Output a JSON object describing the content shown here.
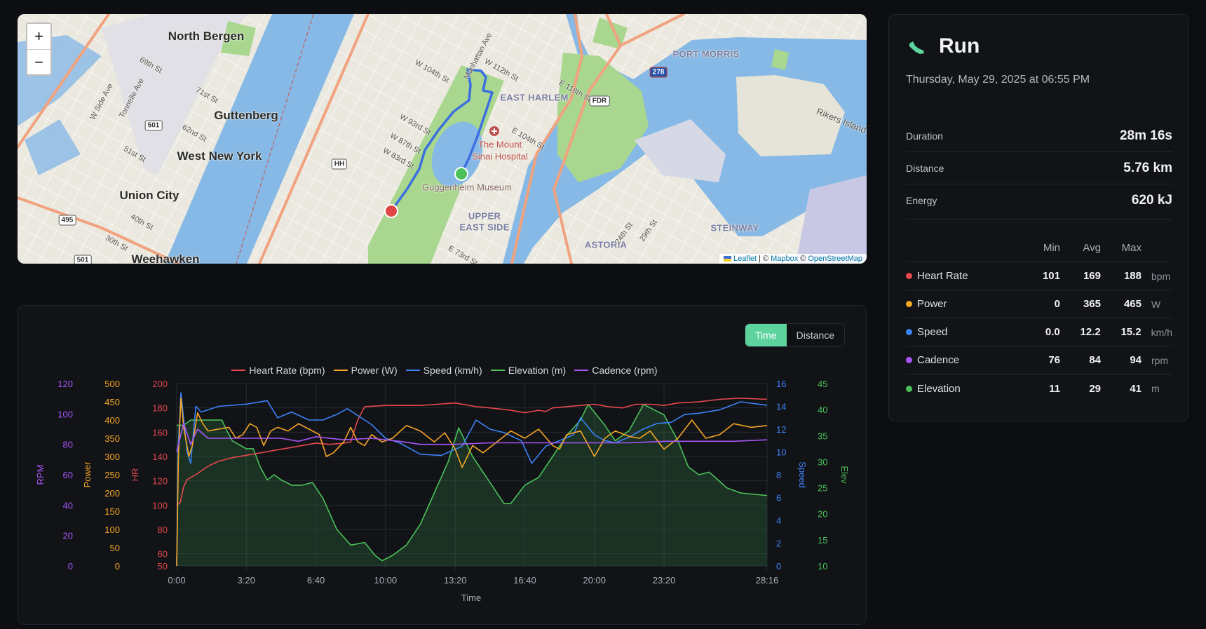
{
  "map": {
    "zoom_in": "+",
    "zoom_out": "−",
    "labels": {
      "north_bergen": "North Bergen",
      "guttenberg": "Guttenberg",
      "west_new_york": "West New York",
      "union_city": "Union City",
      "weehawken": "Weehawken",
      "east_harlem": "EAST HARLEM",
      "port_morris": "PORT MORRIS",
      "upper_east_side_1": "UPPER",
      "upper_east_side_2": "EAST SIDE",
      "astoria": "ASTORIA",
      "steinway": "STEINWAY",
      "rikers": "Rikers Island",
      "guggenheim": "Guggenheim Museum",
      "mount_sinai_1": "The Mount",
      "mount_sinai_2": "Sinai Hospital"
    },
    "streets": [
      "69th St",
      "71st St",
      "62nd St",
      "51st St",
      "40th St",
      "30th St",
      "W Side Ave",
      "Tonnelle Ave",
      "W 104th St",
      "W 112th St",
      "Manhattan Ave",
      "E 118th St",
      "W 93rd St",
      "W 87th St",
      "W 83rd St",
      "E 104th St",
      "E 73rd St",
      "24th St",
      "29th St"
    ],
    "shields": {
      "r501": "501",
      "r495": "495",
      "hh": "HH",
      "fdr": "FDR",
      "i278": "278",
      "r501b": "501"
    },
    "attribution": {
      "leaflet": "Leaflet",
      "sep": "| ©",
      "mapbox": "Mapbox",
      "sep2": "©",
      "osm": "OpenStreetMap"
    },
    "route_color": "#3b6fe0",
    "start_color": "#e04545",
    "end_color": "#4cc15a"
  },
  "activity": {
    "title": "Run",
    "icon": "shoe-icon",
    "accent": "#5dd39e",
    "date": "Thursday, May 29, 2025 at 06:55 PM",
    "summary": [
      {
        "label": "Duration",
        "value": "28m 16s"
      },
      {
        "label": "Distance",
        "value": "5.76 km"
      },
      {
        "label": "Energy",
        "value": "620 kJ"
      }
    ],
    "metrics_header": {
      "min": "Min",
      "avg": "Avg",
      "max": "Max"
    },
    "metrics": [
      {
        "name": "Heart Rate",
        "color": "#e5484d",
        "min": "101",
        "avg": "169",
        "max": "188",
        "unit": "bpm"
      },
      {
        "name": "Power",
        "color": "#f5a524",
        "min": "0",
        "avg": "365",
        "max": "465",
        "unit": "W"
      },
      {
        "name": "Speed",
        "color": "#3b82f6",
        "min": "0.0",
        "avg": "12.2",
        "max": "15.2",
        "unit": "km/h"
      },
      {
        "name": "Cadence",
        "color": "#a855f7",
        "min": "76",
        "avg": "84",
        "max": "94",
        "unit": "rpm"
      },
      {
        "name": "Elevation",
        "color": "#4cc15a",
        "min": "11",
        "avg": "29",
        "max": "41",
        "unit": "m"
      }
    ]
  },
  "chart_toggle": {
    "time": "Time",
    "distance": "Distance",
    "selected": "Time"
  },
  "chart_data": {
    "type": "line",
    "xlabel": "Time",
    "x_range_s": [
      0,
      1696
    ],
    "x_ticks": [
      {
        "v": 0,
        "label": "0:00"
      },
      {
        "v": 200,
        "label": "3:20"
      },
      {
        "v": 400,
        "label": "6:40"
      },
      {
        "v": 600,
        "label": "10:00"
      },
      {
        "v": 800,
        "label": "13:20"
      },
      {
        "v": 1000,
        "label": "16:40"
      },
      {
        "v": 1200,
        "label": "20:00"
      },
      {
        "v": 1400,
        "label": "23:20"
      },
      {
        "v": 1696,
        "label": "28:16"
      }
    ],
    "grid": true,
    "legend": "top",
    "axes": {
      "hr": {
        "title": "HR",
        "color": "#e5484d",
        "range": [
          50,
          200
        ],
        "ticks": [
          50,
          60,
          80,
          100,
          120,
          140,
          160,
          180,
          200
        ],
        "side": "left"
      },
      "power": {
        "title": "Power",
        "color": "#f5a524",
        "range": [
          0,
          500
        ],
        "ticks": [
          0,
          50,
          100,
          150,
          200,
          250,
          300,
          350,
          400,
          450,
          500
        ],
        "side": "left"
      },
      "rpm": {
        "title": "RPM",
        "color": "#a855f7",
        "range": [
          0,
          120
        ],
        "ticks": [
          0,
          20,
          40,
          60,
          80,
          100,
          120
        ],
        "side": "left"
      },
      "speed": {
        "title": "Speed",
        "color": "#3b82f6",
        "range": [
          0,
          16
        ],
        "ticks": [
          0,
          2,
          4,
          6,
          8,
          10,
          12,
          14,
          16
        ],
        "side": "right"
      },
      "elev": {
        "title": "Elev",
        "color": "#4cc15a",
        "range": [
          10,
          45
        ],
        "ticks": [
          10,
          15,
          20,
          25,
          30,
          35,
          40,
          45
        ],
        "side": "right"
      }
    },
    "series": [
      {
        "name": "Heart Rate (bpm)",
        "axis": "hr",
        "color": "#e5484d",
        "points": [
          [
            0,
            100
          ],
          [
            10,
            102
          ],
          [
            20,
            115
          ],
          [
            30,
            121
          ],
          [
            60,
            126
          ],
          [
            90,
            132
          ],
          [
            120,
            136
          ],
          [
            160,
            139
          ],
          [
            200,
            141
          ],
          [
            240,
            143
          ],
          [
            280,
            145
          ],
          [
            320,
            147
          ],
          [
            360,
            149
          ],
          [
            400,
            151
          ],
          [
            440,
            150
          ],
          [
            480,
            151
          ],
          [
            500,
            152
          ],
          [
            520,
            170
          ],
          [
            540,
            181
          ],
          [
            600,
            182
          ],
          [
            700,
            182
          ],
          [
            800,
            184
          ],
          [
            860,
            181
          ],
          [
            900,
            180
          ],
          [
            960,
            178
          ],
          [
            1000,
            176
          ],
          [
            1040,
            178
          ],
          [
            1060,
            177
          ],
          [
            1080,
            180
          ],
          [
            1120,
            181
          ],
          [
            1160,
            182
          ],
          [
            1200,
            183
          ],
          [
            1240,
            181
          ],
          [
            1280,
            180
          ],
          [
            1320,
            183
          ],
          [
            1360,
            183
          ],
          [
            1400,
            182
          ],
          [
            1440,
            184
          ],
          [
            1500,
            185
          ],
          [
            1560,
            187
          ],
          [
            1620,
            188
          ],
          [
            1696,
            187
          ]
        ]
      },
      {
        "name": "Power (W)",
        "axis": "power",
        "color": "#f5a524",
        "points": [
          [
            0,
            0
          ],
          [
            5,
            300
          ],
          [
            12,
            460
          ],
          [
            20,
            380
          ],
          [
            35,
            300
          ],
          [
            45,
            330
          ],
          [
            60,
            420
          ],
          [
            75,
            390
          ],
          [
            90,
            370
          ],
          [
            120,
            375
          ],
          [
            150,
            380
          ],
          [
            170,
            350
          ],
          [
            190,
            360
          ],
          [
            210,
            390
          ],
          [
            230,
            380
          ],
          [
            250,
            330
          ],
          [
            270,
            370
          ],
          [
            290,
            380
          ],
          [
            320,
            370
          ],
          [
            350,
            390
          ],
          [
            380,
            375
          ],
          [
            410,
            360
          ],
          [
            430,
            300
          ],
          [
            450,
            310
          ],
          [
            480,
            340
          ],
          [
            500,
            380
          ],
          [
            520,
            340
          ],
          [
            540,
            330
          ],
          [
            560,
            360
          ],
          [
            590,
            340
          ],
          [
            620,
            350
          ],
          [
            660,
            385
          ],
          [
            700,
            370
          ],
          [
            740,
            340
          ],
          [
            770,
            365
          ],
          [
            800,
            320
          ],
          [
            820,
            270
          ],
          [
            850,
            330
          ],
          [
            880,
            310
          ],
          [
            920,
            340
          ],
          [
            960,
            370
          ],
          [
            1000,
            350
          ],
          [
            1040,
            375
          ],
          [
            1080,
            330
          ],
          [
            1100,
            320
          ],
          [
            1120,
            360
          ],
          [
            1160,
            370
          ],
          [
            1200,
            300
          ],
          [
            1230,
            350
          ],
          [
            1260,
            370
          ],
          [
            1300,
            355
          ],
          [
            1330,
            350
          ],
          [
            1360,
            370
          ],
          [
            1400,
            320
          ],
          [
            1440,
            350
          ],
          [
            1480,
            400
          ],
          [
            1520,
            350
          ],
          [
            1560,
            360
          ],
          [
            1600,
            390
          ],
          [
            1650,
            380
          ],
          [
            1696,
            385
          ]
        ]
      },
      {
        "name": "Speed (km/h)",
        "axis": "speed",
        "color": "#3b82f6",
        "points": [
          [
            0,
            0
          ],
          [
            4,
            10
          ],
          [
            12,
            15.2
          ],
          [
            30,
            10
          ],
          [
            40,
            9
          ],
          [
            55,
            14
          ],
          [
            70,
            13.5
          ],
          [
            120,
            14
          ],
          [
            200,
            14.2
          ],
          [
            260,
            14.5
          ],
          [
            290,
            13
          ],
          [
            330,
            13.5
          ],
          [
            380,
            12.8
          ],
          [
            420,
            12.8
          ],
          [
            460,
            13.3
          ],
          [
            490,
            13.8
          ],
          [
            520,
            13.2
          ],
          [
            560,
            12.4
          ],
          [
            600,
            11.2
          ],
          [
            640,
            10.8
          ],
          [
            700,
            9.8
          ],
          [
            760,
            9.7
          ],
          [
            820,
            10.5
          ],
          [
            860,
            12.8
          ],
          [
            900,
            12
          ],
          [
            940,
            11.7
          ],
          [
            990,
            11
          ],
          [
            1020,
            9
          ],
          [
            1060,
            10.5
          ],
          [
            1100,
            11
          ],
          [
            1140,
            11.5
          ],
          [
            1160,
            13
          ],
          [
            1200,
            11.5
          ],
          [
            1230,
            11
          ],
          [
            1260,
            10.8
          ],
          [
            1300,
            11.3
          ],
          [
            1340,
            12
          ],
          [
            1380,
            12.5
          ],
          [
            1420,
            12.6
          ],
          [
            1460,
            13.3
          ],
          [
            1500,
            13.4
          ],
          [
            1560,
            13.7
          ],
          [
            1620,
            14.4
          ],
          [
            1696,
            14.1
          ]
        ]
      },
      {
        "name": "Elevation (m)",
        "axis": "elev",
        "color": "#4cc15a",
        "fill": true,
        "points": [
          [
            0,
            37
          ],
          [
            20,
            37
          ],
          [
            40,
            38
          ],
          [
            130,
            38
          ],
          [
            140,
            36.5
          ],
          [
            160,
            34
          ],
          [
            200,
            32.5
          ],
          [
            220,
            32.5
          ],
          [
            240,
            29
          ],
          [
            260,
            26.5
          ],
          [
            280,
            27.5
          ],
          [
            300,
            26.5
          ],
          [
            330,
            25.5
          ],
          [
            360,
            25.5
          ],
          [
            390,
            26
          ],
          [
            420,
            23
          ],
          [
            460,
            17
          ],
          [
            500,
            14
          ],
          [
            540,
            14.5
          ],
          [
            570,
            12
          ],
          [
            590,
            11
          ],
          [
            620,
            12
          ],
          [
            660,
            14
          ],
          [
            700,
            18
          ],
          [
            740,
            24
          ],
          [
            780,
            30
          ],
          [
            810,
            36.5
          ],
          [
            850,
            31
          ],
          [
            900,
            26
          ],
          [
            940,
            22
          ],
          [
            960,
            22
          ],
          [
            1000,
            25.5
          ],
          [
            1040,
            27
          ],
          [
            1080,
            31
          ],
          [
            1120,
            35
          ],
          [
            1160,
            38
          ],
          [
            1182,
            41
          ],
          [
            1230,
            37
          ],
          [
            1260,
            34
          ],
          [
            1300,
            36
          ],
          [
            1341,
            41
          ],
          [
            1370,
            40
          ],
          [
            1400,
            39
          ],
          [
            1440,
            34
          ],
          [
            1470,
            29
          ],
          [
            1500,
            27.5
          ],
          [
            1530,
            28
          ],
          [
            1580,
            25
          ],
          [
            1620,
            24
          ],
          [
            1696,
            23.5
          ]
        ]
      },
      {
        "name": "Cadence (rpm)",
        "axis": "rpm",
        "color": "#a855f7",
        "points": [
          [
            0,
            75
          ],
          [
            20,
            94
          ],
          [
            40,
            80
          ],
          [
            60,
            90
          ],
          [
            90,
            84
          ],
          [
            150,
            84
          ],
          [
            300,
            84
          ],
          [
            350,
            82
          ],
          [
            400,
            85
          ],
          [
            480,
            83
          ],
          [
            560,
            84
          ],
          [
            640,
            82
          ],
          [
            700,
            80
          ],
          [
            800,
            80
          ],
          [
            900,
            81
          ],
          [
            1000,
            81
          ],
          [
            1100,
            81
          ],
          [
            1200,
            81
          ],
          [
            1300,
            81
          ],
          [
            1400,
            82
          ],
          [
            1500,
            82
          ],
          [
            1600,
            82
          ],
          [
            1696,
            83
          ]
        ]
      }
    ]
  }
}
